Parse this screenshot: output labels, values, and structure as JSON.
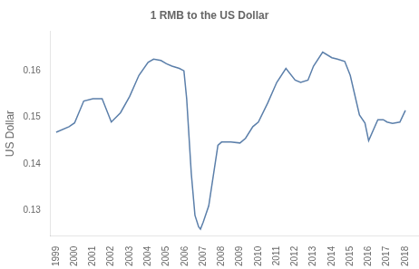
{
  "chart_data": {
    "type": "line",
    "title": "1 RMB to the US Dollar",
    "ylabel": "US Dollar",
    "x": [
      1999,
      1999.7,
      2000,
      2000.5,
      2001,
      2001.5,
      2002,
      2002.5,
      2003,
      2003.5,
      2004,
      2004.3,
      2004.7,
      2005,
      2005.3,
      2005.7,
      2005.95,
      2006.1,
      2006.35,
      2006.55,
      2006.75,
      2006.85,
      2007.0,
      2007.3,
      2007.8,
      2008.0,
      2008.5,
      2009.0,
      2009.3,
      2009.7,
      2010.0,
      2010.5,
      2011.0,
      2011.5,
      2012.0,
      2012.3,
      2012.7,
      2013.0,
      2013.5,
      2014.0,
      2014.3,
      2014.7,
      2015.0,
      2015.5,
      2015.8,
      2016.0,
      2016.5,
      2016.8,
      2017.0,
      2017.3,
      2017.7,
      2018.0
    ],
    "values": [
      0.1468,
      0.148,
      0.1488,
      0.1535,
      0.154,
      0.154,
      0.149,
      0.151,
      0.1545,
      0.159,
      0.1618,
      0.1625,
      0.1622,
      0.1615,
      0.161,
      0.1605,
      0.16,
      0.154,
      0.138,
      0.129,
      0.1265,
      0.126,
      0.1275,
      0.131,
      0.144,
      0.1447,
      0.1447,
      0.1445,
      0.1455,
      0.148,
      0.149,
      0.153,
      0.1575,
      0.1605,
      0.158,
      0.1575,
      0.158,
      0.161,
      0.164,
      0.1628,
      0.1625,
      0.162,
      0.159,
      0.1505,
      0.1488,
      0.145,
      0.1495,
      0.1495,
      0.149,
      0.1487,
      0.149,
      0.1515
    ],
    "color": "#5b7faa",
    "xlim": [
      1998.7,
      2018.7
    ],
    "xticks": [
      1999,
      2000,
      2001,
      2002,
      2003,
      2004,
      2005,
      2006,
      2007,
      2008,
      2009,
      2010,
      2011,
      2012,
      2013,
      2014,
      2015,
      2016,
      2017,
      2018
    ],
    "ylim": [
      0.1245,
      0.1685
    ],
    "yticks": [
      0.13,
      0.14,
      0.15,
      0.16
    ],
    "grid": false
  }
}
